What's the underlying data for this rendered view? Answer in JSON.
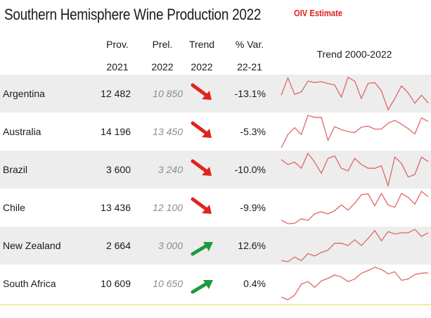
{
  "title": "Southern Hemisphere Wine Production 2022",
  "badge": "OIV Estimate",
  "headers": {
    "prov": [
      "Prov.",
      "2021"
    ],
    "prel": [
      "Prel.",
      "2022"
    ],
    "trend": [
      "Trend",
      "2022"
    ],
    "var": [
      "% Var.",
      "22-21"
    ],
    "spark": "Trend 2000-2022"
  },
  "colors": {
    "down": "#e0231c",
    "up": "#1f9a3a",
    "spark": "#e06666",
    "alt_row": "#ededed"
  },
  "rows": [
    {
      "country": "Argentina",
      "prov": "12 482",
      "prel": "10 850",
      "trend": "down",
      "var": "-13.1%"
    },
    {
      "country": "Australia",
      "prov": "14 196",
      "prel": "13 450",
      "trend": "down",
      "var": "-5.3%"
    },
    {
      "country": "Brazil",
      "prov": "3 600",
      "prel": "3 240",
      "trend": "down",
      "var": "-10.0%"
    },
    {
      "country": "Chile",
      "prov": "13 436",
      "prel": "12 100",
      "trend": "down",
      "var": "-9.9%"
    },
    {
      "country": "New Zealand",
      "prov": "2 664",
      "prel": "3 000",
      "trend": "up",
      "var": "12.6%"
    },
    {
      "country": "South Africa",
      "prov": "10 609",
      "prel": "10 650",
      "trend": "up",
      "var": "0.4%"
    }
  ],
  "chart_data": {
    "type": "table",
    "columns": [
      "Prov. 2021",
      "Prel. 2022",
      "Trend 2022",
      "% Var. 22-21",
      "Trend 2000-2022"
    ],
    "categories": [
      "Argentina",
      "Australia",
      "Brazil",
      "Chile",
      "New Zealand",
      "South Africa"
    ],
    "series": [
      {
        "name": "Prov. 2021",
        "values": [
          12482,
          14196,
          3600,
          13436,
          2664,
          10609
        ]
      },
      {
        "name": "Prel. 2022",
        "values": [
          10850,
          13450,
          3240,
          12100,
          3000,
          10650
        ]
      },
      {
        "name": "% Var. 22-21",
        "values": [
          -13.1,
          -5.3,
          -10.0,
          -9.9,
          12.6,
          0.4
        ]
      }
    ],
    "x": [
      2000,
      2001,
      2002,
      2003,
      2004,
      2005,
      2006,
      2007,
      2008,
      2009,
      2010,
      2011,
      2012,
      2013,
      2014,
      2015,
      2016,
      2017,
      2018,
      2019,
      2020,
      2021,
      2022
    ],
    "sparklines": [
      {
        "name": "Argentina",
        "values": [
          12.5,
          16.2,
          12.7,
          13.2,
          15.5,
          15.2,
          15.4,
          15.0,
          14.7,
          12.1,
          16.3,
          15.5,
          11.8,
          15.0,
          15.2,
          13.4,
          9.4,
          11.8,
          14.5,
          13.0,
          10.8,
          12.5,
          10.85
        ]
      },
      {
        "name": "Australia",
        "values": [
          8.1,
          10.8,
          12.2,
          10.8,
          14.7,
          14.3,
          14.3,
          9.6,
          12.4,
          11.8,
          11.4,
          11.2,
          12.3,
          12.5,
          11.9,
          11.9,
          13.1,
          13.7,
          12.9,
          12.0,
          10.9,
          14.2,
          13.45
        ]
      },
      {
        "name": "Brazil",
        "values": [
          3.4,
          3.0,
          3.2,
          2.7,
          3.9,
          3.2,
          2.3,
          3.5,
          3.7,
          2.7,
          2.5,
          3.5,
          3.0,
          2.7,
          2.7,
          2.9,
          1.3,
          3.6,
          3.1,
          2.0,
          2.2,
          3.6,
          3.24
        ]
      },
      {
        "name": "Chile",
        "values": [
          6.4,
          5.5,
          5.6,
          6.7,
          6.3,
          7.9,
          8.4,
          7.9,
          8.7,
          10.1,
          8.8,
          10.5,
          12.6,
          12.8,
          9.9,
          12.9,
          10.1,
          9.5,
          12.9,
          11.9,
          10.3,
          13.4,
          12.1
        ]
      },
      {
        "name": "New Zealand",
        "values": [
          0.6,
          0.5,
          0.9,
          0.6,
          1.2,
          1.0,
          1.3,
          1.5,
          2.1,
          2.1,
          1.9,
          2.4,
          1.9,
          2.5,
          3.2,
          2.3,
          3.1,
          2.9,
          3.0,
          3.0,
          3.3,
          2.7,
          3.0
        ]
      },
      {
        "name": "South Africa",
        "values": [
          6.9,
          6.5,
          7.2,
          8.9,
          9.3,
          8.4,
          9.4,
          9.8,
          10.3,
          10.0,
          9.3,
          9.7,
          10.6,
          11.0,
          11.5,
          11.2,
          10.5,
          10.8,
          9.5,
          9.7,
          10.4,
          10.6,
          10.65
        ]
      }
    ]
  }
}
